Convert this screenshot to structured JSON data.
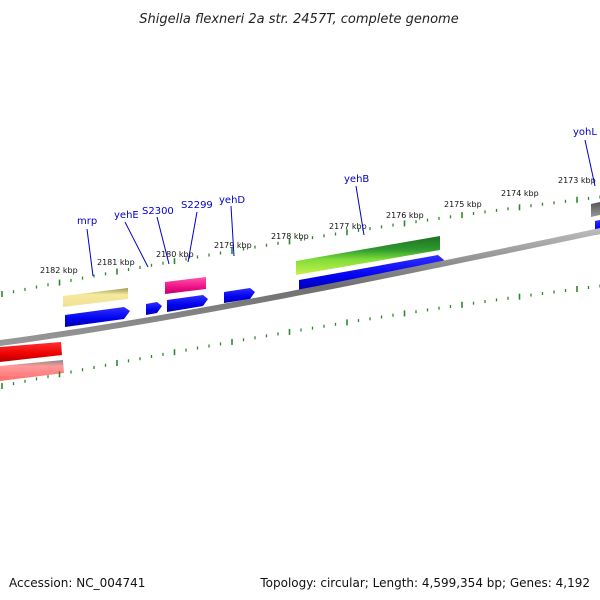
{
  "title": "Shigella flexneri 2a str. 2457T, complete genome",
  "footer": {
    "accession": "Accession: NC_004741",
    "summary": "Topology: circular; Length: 4,599,354 bp; Genes: 4,192"
  },
  "scale_labels": [
    "2182 kbp",
    "2181 kbp",
    "2180 kbp",
    "2179 kbp",
    "2178 kbp",
    "2177 kbp",
    "2176 kbp",
    "2175 kbp",
    "2174 kbp",
    "2173 kbp"
  ],
  "gene_labels": [
    "mrp",
    "yehE",
    "S2300",
    "S2299",
    "yehD",
    "yehB",
    "yohL"
  ],
  "colors": {
    "backbone": "#777777",
    "tick": "#2a8a2a",
    "cds": "#0000ee",
    "gene_label": "#0000cc",
    "rrna_red": "#ff0000",
    "pink": "#ff7777",
    "khaki": "#f1e29a",
    "magenta": "#ee1188",
    "green_dark": "#228b22",
    "green_light": "#aaee33"
  }
}
